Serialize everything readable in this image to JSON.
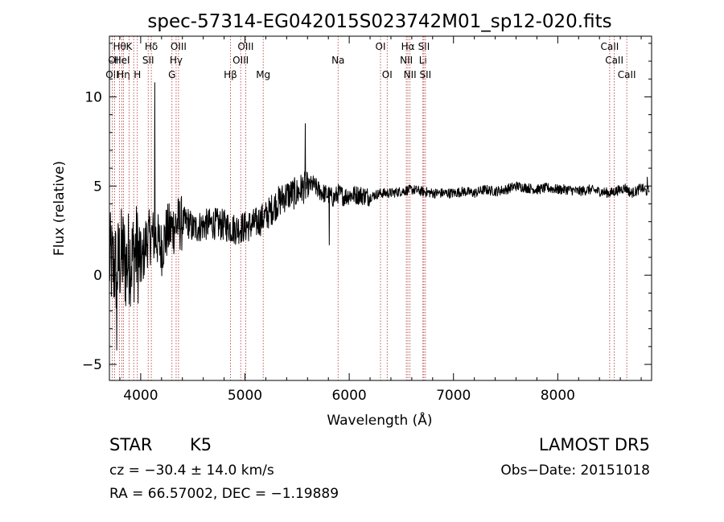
{
  "chart_data": {
    "type": "line",
    "title": "spec-57314-EG042015S023742M01_sp12-020.fits",
    "xlabel": "Wavelength (Å)",
    "ylabel": "Flux (relative)",
    "xlim": [
      3700,
      8900
    ],
    "ylim": [
      -5.9,
      13.4
    ],
    "xticks": [
      4000,
      5000,
      6000,
      7000,
      8000
    ],
    "yticks": [
      -5,
      0,
      5,
      10
    ],
    "grid": false,
    "series": [
      {
        "x": [
          3700,
          3740,
          3770,
          3800,
          3830,
          3860,
          3890,
          3920,
          3950,
          3980,
          4010,
          4050,
          4100,
          4150,
          4200,
          4250,
          4300,
          4350,
          4400,
          4450,
          4500,
          4600,
          4700,
          4800,
          4900,
          5000,
          5100,
          5200,
          5300,
          5400,
          5500,
          5550,
          5600,
          5650,
          5700,
          5750,
          5800,
          5850,
          5900,
          5950,
          6000,
          6100,
          6200,
          6300,
          6400,
          6500,
          6600,
          6700,
          6800,
          6900,
          7000,
          7100,
          7200,
          7300,
          7400,
          7500,
          7600,
          7700,
          7800,
          7900,
          8000,
          8100,
          8200,
          8300,
          8400,
          8500,
          8550,
          8600,
          8650,
          8700,
          8750,
          8800,
          8850,
          8900
        ],
        "y": [
          0.8,
          0.5,
          0.3,
          0.9,
          1.2,
          0.5,
          1.1,
          0.9,
          1.4,
          1.1,
          0.6,
          1.9,
          2.2,
          2.1,
          1.5,
          2.4,
          2.6,
          2.9,
          2.9,
          3.0,
          2.6,
          2.8,
          2.9,
          2.8,
          2.6,
          2.7,
          2.9,
          3.3,
          4.0,
          4.5,
          4.6,
          4.9,
          4.9,
          5.1,
          4.8,
          4.6,
          4.5,
          4.3,
          4.6,
          4.4,
          4.5,
          4.5,
          4.4,
          4.6,
          4.6,
          4.7,
          4.8,
          4.7,
          4.6,
          4.6,
          4.6,
          4.7,
          4.6,
          4.8,
          4.7,
          4.8,
          5.0,
          4.9,
          4.8,
          4.9,
          4.8,
          4.8,
          4.7,
          4.8,
          4.7,
          4.6,
          4.7,
          4.8,
          4.9,
          4.6,
          4.7,
          4.9,
          4.7,
          4.8
        ]
      }
    ],
    "annotations": [
      {
        "x": 6563,
        "label": ""
      },
      {
        "x": 5890,
        "label": ""
      }
    ],
    "spikes": [
      {
        "x": 4134,
        "y": 10.8
      },
      {
        "x": 5577,
        "y": 8.5
      },
      {
        "x": 5810,
        "y": 1.7
      },
      {
        "x": 3770,
        "y": -4.2
      },
      {
        "x": 8858,
        "y": 5.5
      }
    ],
    "lines": [
      {
        "x": 3727,
        "label": "OII",
        "row": 3
      },
      {
        "x": 3750,
        "label": "OII",
        "row": 2
      },
      {
        "x": 3798,
        "label": "Hθ",
        "row": 1
      },
      {
        "x": 3820,
        "label": "HeI",
        "row": 2
      },
      {
        "x": 3835,
        "label": "Hη",
        "row": 3
      },
      {
        "x": 3889,
        "label": "K",
        "row": 1
      },
      {
        "x": 3933,
        "label": "",
        "row": 0
      },
      {
        "x": 3968,
        "label": "H",
        "row": 3
      },
      {
        "x": 4072,
        "label": "SII",
        "row": 2
      },
      {
        "x": 4102,
        "label": "Hδ",
        "row": 1
      },
      {
        "x": 4300,
        "label": "G",
        "row": 3
      },
      {
        "x": 4340,
        "label": "Hγ",
        "row": 2
      },
      {
        "x": 4363,
        "label": "OIII",
        "row": 1
      },
      {
        "x": 4861,
        "label": "Hβ",
        "row": 3
      },
      {
        "x": 4959,
        "label": "OIII",
        "row": 2
      },
      {
        "x": 5007,
        "label": "OIII",
        "row": 1
      },
      {
        "x": 5175,
        "label": "Mg",
        "row": 3
      },
      {
        "x": 5893,
        "label": "Na",
        "row": 2
      },
      {
        "x": 6300,
        "label": "OI",
        "row": 1
      },
      {
        "x": 6364,
        "label": "OI",
        "row": 3
      },
      {
        "x": 6548,
        "label": "NII",
        "row": 2
      },
      {
        "x": 6563,
        "label": "Hα",
        "row": 1
      },
      {
        "x": 6583,
        "label": "NII",
        "row": 3
      },
      {
        "x": 6707,
        "label": "Li",
        "row": 2
      },
      {
        "x": 6716,
        "label": "SII",
        "row": 1
      },
      {
        "x": 6731,
        "label": "SII",
        "row": 3
      },
      {
        "x": 8498,
        "label": "CaII",
        "row": 1
      },
      {
        "x": 8542,
        "label": "CaII",
        "row": 2
      },
      {
        "x": 8662,
        "label": "CaII",
        "row": 3
      }
    ]
  },
  "info": {
    "class": "STAR",
    "subclass": "K5",
    "survey": "LAMOST  DR5",
    "cz": "cz = −30.4 ± 14.0 km/s",
    "obs_date": "Obs−Date: 20151018",
    "radec": "RA =  66.57002, DEC =  −1.19889"
  }
}
